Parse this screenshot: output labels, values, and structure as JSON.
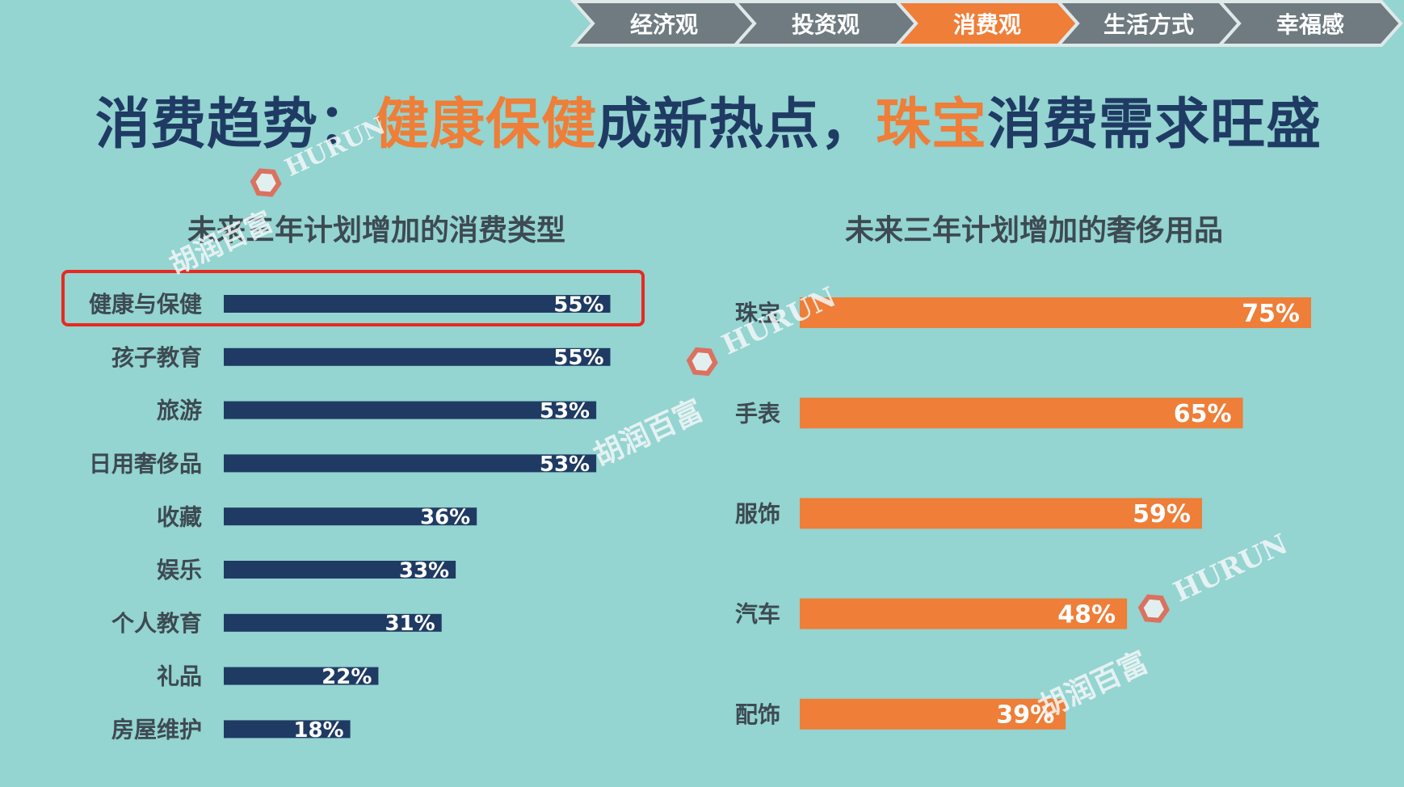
{
  "nav": {
    "items": [
      {
        "label": "经济观"
      },
      {
        "label": "投资观"
      },
      {
        "label": "消费观"
      },
      {
        "label": "生活方式"
      },
      {
        "label": "幸福感"
      }
    ],
    "active_index": 2,
    "colors": {
      "inactive": "#6f7b80",
      "active": "#ee7e38"
    }
  },
  "title": {
    "part1": "消费趋势：",
    "highlight1": "健康保健",
    "part2": "成新热点，",
    "highlight2": "珠宝",
    "part3": "消费需求旺盛"
  },
  "watermarks": [
    {
      "brand": "HURUN",
      "cn": "胡润百富"
    },
    {
      "brand": "HURUN",
      "cn": "胡润百富"
    },
    {
      "brand": "HURUN",
      "cn": "胡润百富"
    }
  ],
  "chart_data": [
    {
      "type": "bar",
      "orientation": "horizontal",
      "title": "未来三年计划增加的消费类型",
      "categories": [
        "健康与保健",
        "孩子教育",
        "旅游",
        "日用奢侈品",
        "收藏",
        "娱乐",
        "个人教育",
        "礼品",
        "房屋维护"
      ],
      "values": [
        55,
        55,
        53,
        53,
        36,
        33,
        31,
        22,
        18
      ],
      "value_labels": [
        "55%",
        "55%",
        "53%",
        "53%",
        "36%",
        "33%",
        "31%",
        "22%",
        "18%"
      ],
      "unit": "%",
      "color": "#1f3b63",
      "highlighted_category": "健康与保健",
      "highlight_color": "#e8291f"
    },
    {
      "type": "bar",
      "orientation": "horizontal",
      "title": "未来三年计划增加的奢侈用品",
      "categories": [
        "珠宝",
        "手表",
        "服饰",
        "汽车",
        "配饰"
      ],
      "values": [
        75,
        65,
        59,
        48,
        39
      ],
      "value_labels": [
        "75%",
        "65%",
        "59%",
        "48%",
        "39%"
      ],
      "unit": "%",
      "color": "#ee7e38"
    }
  ]
}
